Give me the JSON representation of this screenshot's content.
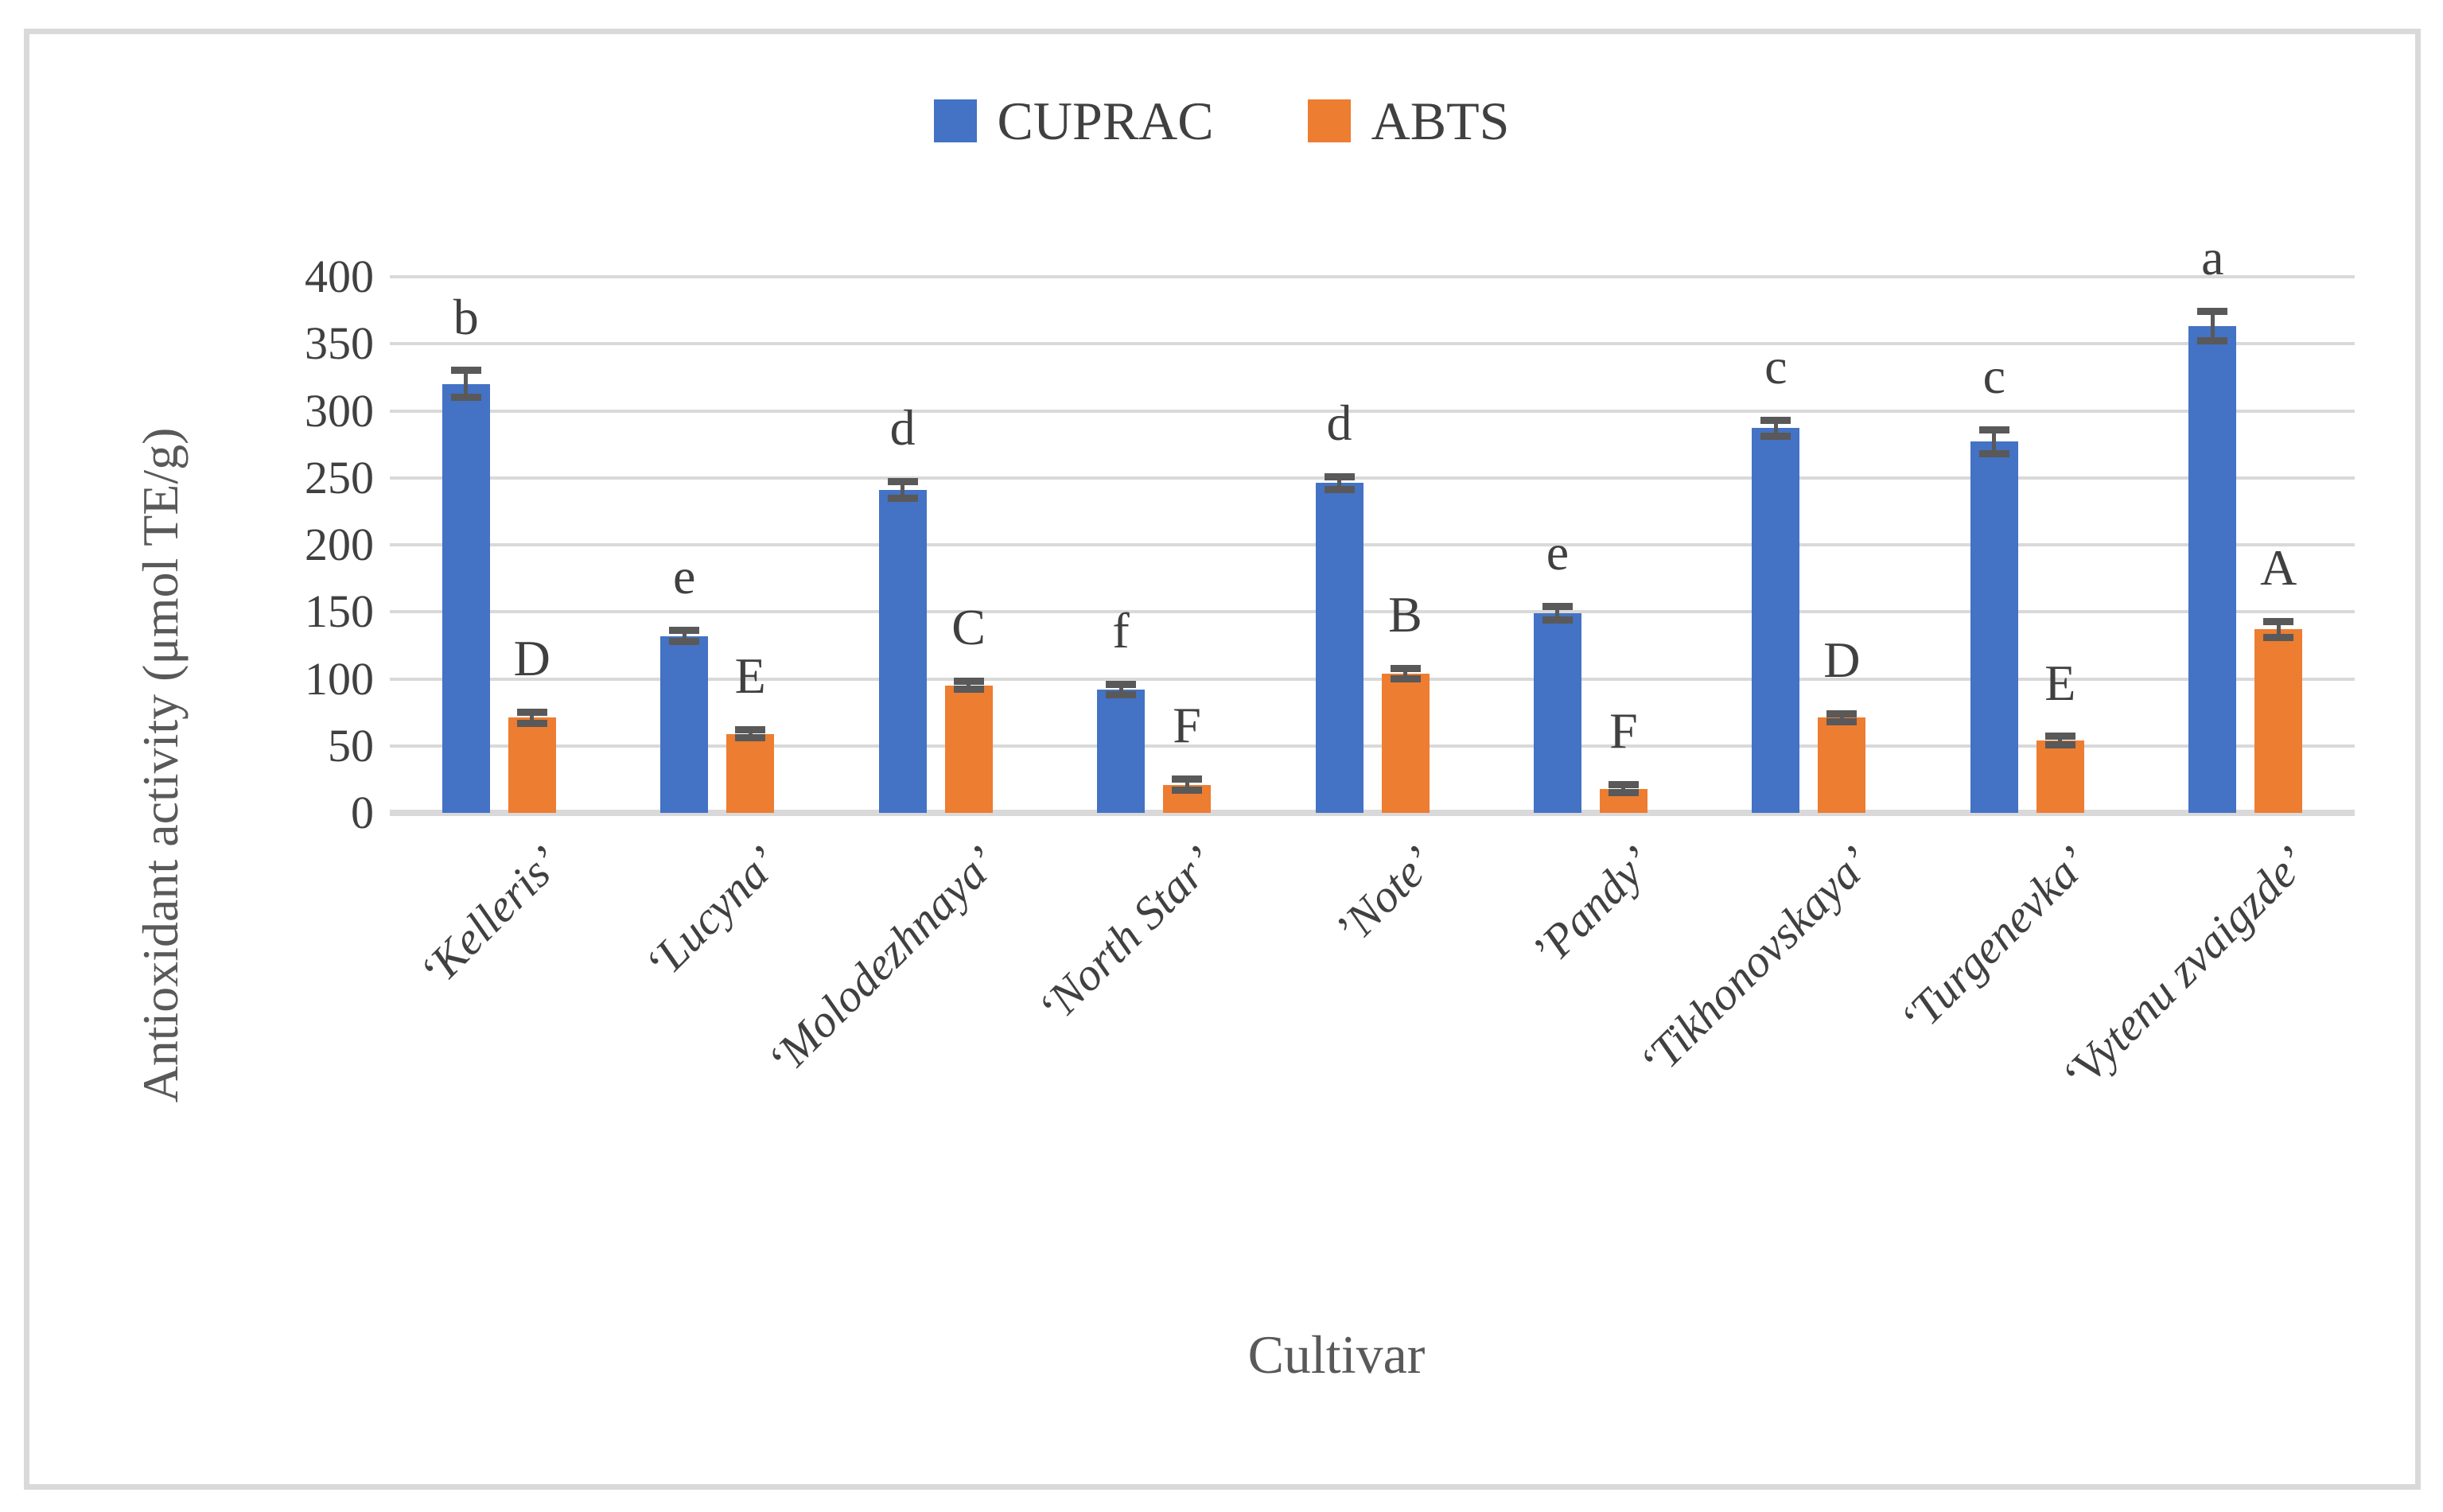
{
  "figure": {
    "background": "#ffffff",
    "border_color": "#d9d9d9",
    "gridline_color": "#d9d9d9",
    "error_bar_color": "#595959",
    "text_color": "#404040",
    "axis_title_color": "#595959"
  },
  "chart_data": {
    "type": "bar",
    "title": "",
    "xlabel": "Cultivar",
    "ylabel": "Antioxidant activity (μmol TE/g)",
    "ylim": [
      0,
      400
    ],
    "yticks": [
      0,
      50,
      100,
      150,
      200,
      250,
      300,
      350,
      400
    ],
    "grid": true,
    "legend_position": "top-center",
    "categories": [
      "‘Kelleris’",
      "‘Lucyna’",
      "‘Molodezhnaya’",
      "‘North Star’",
      "’Note’",
      "’Pandy’",
      "‘Tikhonovskaya’",
      "‘Turgenevka’",
      "‘Vytenu zvaigzde’"
    ],
    "series": [
      {
        "name": "CUPRAC",
        "color": "#4472c4",
        "values": [
          320,
          132,
          241,
          92,
          246,
          149,
          287,
          277,
          363
        ],
        "errors": [
          10,
          4,
          6,
          4,
          5,
          5,
          6,
          9,
          11
        ],
        "letters": [
          "b",
          "e",
          "d",
          "f",
          "d",
          "e",
          "c",
          "c",
          "a"
        ]
      },
      {
        "name": "ABTS",
        "color": "#ed7d31",
        "values": [
          71,
          59,
          95,
          21,
          104,
          18,
          71,
          54,
          137
        ],
        "errors": [
          4,
          3,
          3,
          4,
          4,
          3,
          3,
          3,
          6
        ],
        "letters": [
          "D",
          "E",
          "C",
          "F",
          "B",
          "F",
          "D",
          "E",
          "A"
        ]
      }
    ]
  }
}
